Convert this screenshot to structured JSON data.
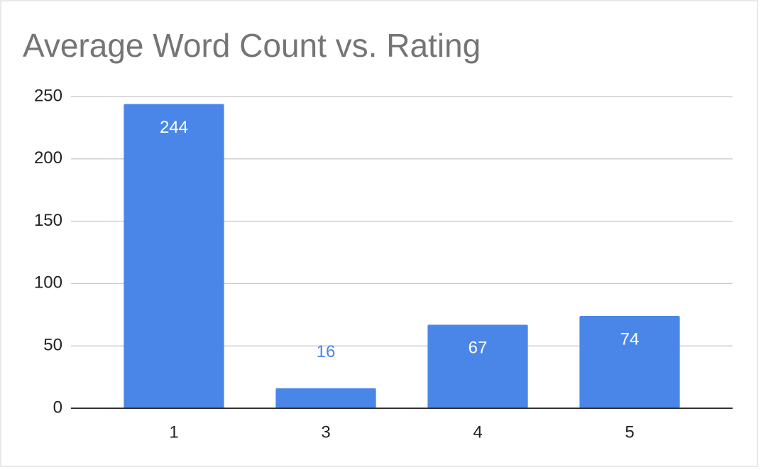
{
  "chart_data": {
    "type": "bar",
    "title": "Average Word Count vs. Rating",
    "categories": [
      "1",
      "3",
      "4",
      "5"
    ],
    "values": [
      244,
      16,
      67,
      74
    ],
    "color": "#4a86e8",
    "ylim": [
      0,
      250
    ],
    "yticks": [
      0,
      50,
      100,
      150,
      200,
      250
    ],
    "grid": true
  }
}
